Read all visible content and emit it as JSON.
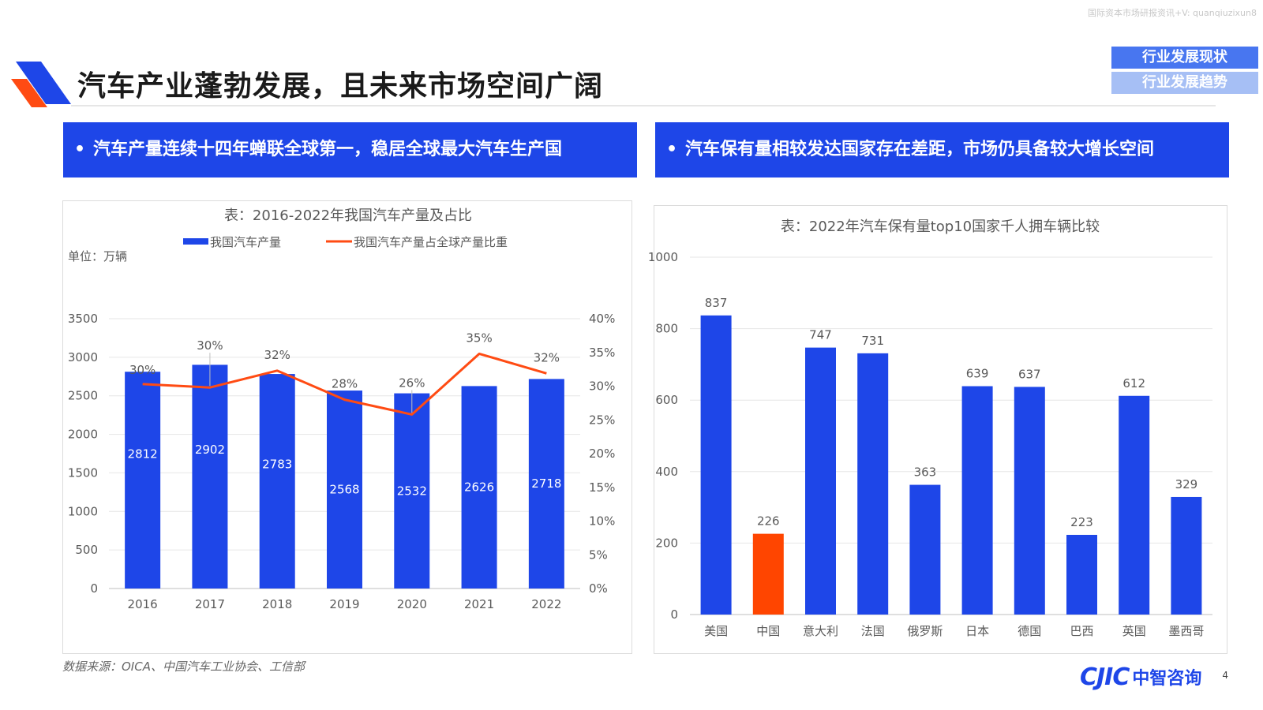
{
  "header": {
    "watermark": "国际资本市场研报资讯+V: quanqiuzixun8",
    "title": "汽车产业蓬勃发展，且未来市场空间广阔"
  },
  "tabs": [
    {
      "label": "行业发展现状",
      "active": true
    },
    {
      "label": "行业发展趋势",
      "active": false
    }
  ],
  "banners": {
    "left": "汽车产量连续十四年蝉联全球第一，稳居全球最大汽车生产国",
    "right": "汽车保有量相较发达国家存在差距，市场仍具备较大增长空间",
    "bullet": "•"
  },
  "colors": {
    "primary_blue": "#1E46E8",
    "line_orange": "#FF4B13",
    "highlight_red": "#FF4500",
    "tab_active": "#4876F0",
    "tab_inactive": "#A6BFF5"
  },
  "chart_data": [
    {
      "type": "bar+line",
      "title": "表：2016-2022年我国汽车产量及占比",
      "unit_label": "单位：万辆",
      "categories": [
        "2016",
        "2017",
        "2018",
        "2019",
        "2020",
        "2021",
        "2022"
      ],
      "series": [
        {
          "name": "我国汽车产量",
          "type": "bar",
          "axis": "left",
          "values": [
            2812,
            2902,
            2783,
            2568,
            2532,
            2626,
            2718
          ],
          "labels": [
            "2812",
            "2902",
            "2783",
            "2568",
            "2532",
            "2626",
            "2718"
          ]
        },
        {
          "name": "我国汽车产量占全球产量比重",
          "type": "line",
          "axis": "right",
          "values": [
            30.3,
            29.8,
            32.3,
            28.0,
            25.8,
            34.8,
            31.9
          ],
          "labels": [
            "30%",
            "30%",
            "32%",
            "28%",
            "26%",
            "35%",
            "32%"
          ]
        }
      ],
      "y_left": {
        "min": 0,
        "max": 3500,
        "step": 500,
        "ticks": [
          "0",
          "500",
          "1000",
          "1500",
          "2000",
          "2500",
          "3000",
          "3500"
        ]
      },
      "y_right": {
        "min": 0,
        "max": 40,
        "step": 5,
        "ticks": [
          "0%",
          "5%",
          "10%",
          "15%",
          "20%",
          "25%",
          "30%",
          "35%",
          "40%"
        ]
      },
      "grid": true,
      "legend": "top"
    },
    {
      "type": "bar",
      "title": "表：2022年汽车保有量top10国家千人拥车辆比较",
      "categories": [
        "美国",
        "中国",
        "意大利",
        "法国",
        "俄罗斯",
        "日本",
        "德国",
        "巴西",
        "英国",
        "墨西哥"
      ],
      "values": [
        837,
        226,
        747,
        731,
        363,
        639,
        637,
        223,
        612,
        329
      ],
      "labels": [
        "837",
        "226",
        "747",
        "731",
        "363",
        "639",
        "637",
        "223",
        "612",
        "329"
      ],
      "highlight_index": 1,
      "y": {
        "min": 0,
        "max": 1000,
        "step": 200,
        "ticks": [
          "0",
          "200",
          "400",
          "600",
          "800",
          "1000"
        ]
      },
      "grid": true
    }
  ],
  "footer": {
    "source": "数据来源：OICA、中国汽车工业协会、工信部",
    "brand_mark": "CJIC",
    "brand_name": "中智咨询",
    "page": "4"
  }
}
